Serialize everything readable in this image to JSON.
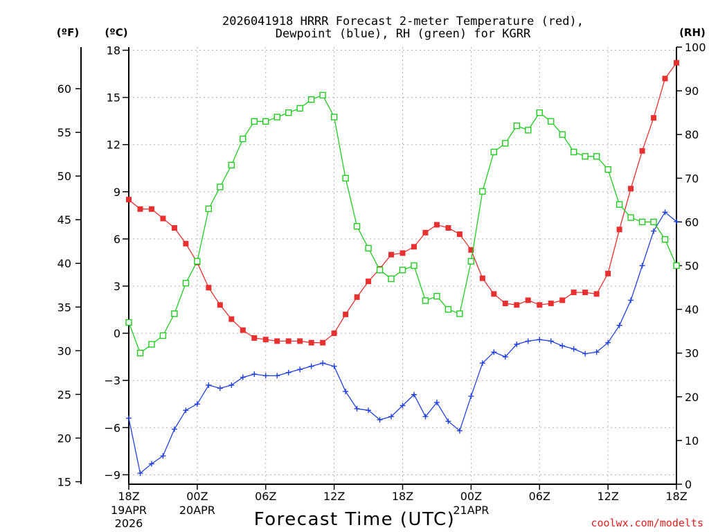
{
  "header": {
    "title_line1": "2026041918 HRRR Forecast 2-meter Temperature (red),",
    "title_line2": "Dewpoint (blue), RH (green) for KGRR"
  },
  "credit": "coolwx.com/modelts",
  "chart_data": {
    "type": "line",
    "title": "2026041918 HRRR Forecast 2-meter Temperature (red), Dewpoint (blue), RH (green) for KGRR",
    "xlabel": "Forecast Time (UTC)",
    "forecast_hours": [
      0,
      1,
      2,
      3,
      4,
      5,
      6,
      7,
      8,
      9,
      10,
      11,
      12,
      13,
      14,
      15,
      16,
      17,
      18,
      19,
      20,
      21,
      22,
      23,
      24,
      25,
      26,
      27,
      28,
      29,
      30,
      31,
      32,
      33,
      34,
      35,
      36,
      37,
      38,
      39,
      40,
      41,
      42,
      43,
      44,
      45,
      46,
      47,
      48
    ],
    "x_ticks": [
      {
        "hour": 0,
        "label": "18Z",
        "sub1": "19APR",
        "sub2": "2026"
      },
      {
        "hour": 6,
        "label": "00Z",
        "sub1": "20APR",
        "sub2": ""
      },
      {
        "hour": 12,
        "label": "06Z",
        "sub1": "",
        "sub2": ""
      },
      {
        "hour": 18,
        "label": "12Z",
        "sub1": "",
        "sub2": ""
      },
      {
        "hour": 24,
        "label": "18Z",
        "sub1": "",
        "sub2": ""
      },
      {
        "hour": 30,
        "label": "00Z",
        "sub1": "21APR",
        "sub2": ""
      },
      {
        "hour": 36,
        "label": "06Z",
        "sub1": "",
        "sub2": ""
      },
      {
        "hour": 42,
        "label": "12Z",
        "sub1": "",
        "sub2": ""
      },
      {
        "hour": 48,
        "label": "18Z",
        "sub1": "",
        "sub2": ""
      }
    ],
    "axes": {
      "celsius": {
        "label": "(ºC)",
        "range": [
          -9.6,
          18.2
        ],
        "ticks": [
          -9,
          -6,
          -3,
          0,
          3,
          6,
          9,
          12,
          15,
          18
        ]
      },
      "fahrenheit": {
        "label": "(ºF)",
        "range": [
          14.72,
          64.76
        ],
        "ticks": [
          15,
          20,
          25,
          30,
          35,
          40,
          45,
          50,
          55,
          60
        ]
      },
      "rh": {
        "label": "(RH)",
        "range": [
          0,
          100
        ],
        "ticks": [
          0,
          10,
          20,
          30,
          40,
          50,
          60,
          70,
          80,
          90,
          100
        ]
      }
    },
    "series": [
      {
        "name": "Temperature",
        "units": "C",
        "color": "#e83030",
        "marker": "filled-square",
        "values": [
          8.5,
          7.9,
          7.9,
          7.3,
          6.7,
          5.7,
          4.5,
          2.9,
          1.8,
          0.9,
          0.2,
          -0.3,
          -0.4,
          -0.5,
          -0.5,
          -0.5,
          -0.6,
          -0.6,
          0.0,
          1.2,
          2.3,
          3.3,
          4.1,
          5.0,
          5.1,
          5.5,
          6.4,
          6.9,
          6.7,
          6.3,
          5.3,
          3.5,
          2.5,
          1.9,
          1.8,
          2.1,
          1.8,
          1.9,
          2.1,
          2.6,
          2.6,
          2.5,
          3.8,
          6.6,
          9.2,
          11.6,
          13.7,
          16.2,
          17.2
        ]
      },
      {
        "name": "Dewpoint",
        "units": "C",
        "color": "#2040e0",
        "marker": "plus",
        "values": [
          -5.4,
          -8.9,
          -8.3,
          -7.8,
          -6.1,
          -4.9,
          -4.5,
          -3.3,
          -3.5,
          -3.3,
          -2.8,
          -2.6,
          -2.7,
          -2.7,
          -2.5,
          -2.3,
          -2.1,
          -1.9,
          -2.1,
          -3.7,
          -4.8,
          -4.9,
          -5.5,
          -5.3,
          -4.6,
          -3.9,
          -5.3,
          -4.4,
          -5.6,
          -6.2,
          -4.0,
          -1.9,
          -1.2,
          -1.5,
          -0.7,
          -0.5,
          -0.4,
          -0.5,
          -0.8,
          -1.0,
          -1.3,
          -1.2,
          -0.6,
          0.5,
          2.1,
          4.3,
          6.5,
          7.7,
          7.1
        ]
      },
      {
        "name": "RH",
        "units": "%",
        "color": "#20cc20",
        "marker": "open-square",
        "values": [
          37,
          30,
          32,
          34,
          39,
          46,
          51,
          63,
          68,
          73,
          79,
          83,
          83,
          84,
          85,
          86,
          88,
          89,
          84,
          70,
          59,
          54,
          49,
          47,
          49,
          50,
          42,
          43,
          40,
          39,
          51,
          67,
          76,
          78,
          82,
          81,
          85,
          83,
          80,
          76,
          75,
          75,
          72,
          64,
          61,
          60,
          60,
          56,
          50
        ]
      }
    ]
  }
}
